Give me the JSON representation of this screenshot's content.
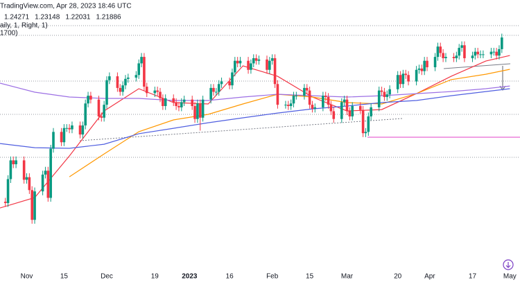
{
  "chart_data": {
    "type": "candlestick",
    "header": "TradingView.com, Apr 28, 2023 18:46 UTC",
    "info_line": "aily, 1, Right, 1)",
    "info_line_2": "1700)",
    "up_color": "#089981",
    "down_color": "#f23645",
    "xlim": [
      0,
      194.8
    ],
    "ylim": [
      1.077,
      1.286
    ],
    "xticks": [
      {
        "value": 10,
        "label": "Nov"
      },
      {
        "value": 24,
        "label": "15"
      },
      {
        "value": 40,
        "label": "Dec"
      },
      {
        "value": 58,
        "label": "19"
      },
      {
        "value": 71,
        "label": "2023"
      },
      {
        "value": 86,
        "label": "16"
      },
      {
        "value": 102,
        "label": "Feb"
      },
      {
        "value": 116,
        "label": "15"
      },
      {
        "value": 130,
        "label": "Mar"
      },
      {
        "value": 149,
        "label": "20"
      },
      {
        "value": 161,
        "label": "Apr"
      },
      {
        "value": 177,
        "label": "17"
      },
      {
        "value": 191,
        "label": "May"
      }
    ],
    "x": [
      2,
      3,
      4,
      5,
      6,
      9,
      10,
      11,
      12,
      13,
      16,
      17,
      18,
      19,
      20,
      23,
      24,
      25,
      26,
      27,
      30,
      31,
      32,
      33,
      34,
      37,
      38,
      39,
      40,
      41,
      44,
      45,
      46,
      47,
      48,
      51,
      52,
      53,
      54,
      55,
      58,
      59,
      60,
      61,
      62,
      65,
      66,
      67,
      68,
      69,
      72,
      73,
      74,
      75,
      76,
      79,
      80,
      81,
      82,
      83,
      86,
      87,
      88,
      89,
      90,
      93,
      94,
      95,
      96,
      97,
      100,
      101,
      102,
      103,
      104,
      107,
      108,
      109,
      110,
      111,
      114,
      115,
      116,
      117,
      118,
      121,
      122,
      123,
      124,
      125,
      128,
      129,
      130,
      131,
      132,
      135,
      136,
      137,
      138,
      139,
      142,
      143,
      144,
      145,
      146,
      149,
      150,
      151,
      152,
      153,
      156,
      157,
      158,
      159,
      160,
      163,
      164,
      165,
      166,
      167,
      170,
      171,
      172,
      173,
      174,
      177,
      178,
      179,
      180,
      181,
      184,
      185,
      186,
      187,
      188
    ],
    "open": [
      1.13,
      1.129,
      1.1475,
      1.162,
      1.159,
      1.162,
      1.147,
      1.149,
      1.139,
      1.116,
      1.138,
      1.151,
      1.154,
      1.133,
      1.171,
      1.184,
      1.176,
      1.187,
      1.187,
      1.186,
      1.189,
      1.182,
      1.189,
      1.206,
      1.212,
      1.209,
      1.196,
      1.195,
      1.205,
      1.224,
      1.227,
      1.218,
      1.215,
      1.22,
      1.225,
      1.226,
      1.228,
      1.237,
      1.242,
      1.219,
      1.214,
      1.216,
      1.215,
      1.21,
      1.204,
      1.21,
      1.207,
      1.204,
      1.203,
      1.207,
      1.209,
      1.204,
      1.194,
      1.206,
      1.195,
      1.209,
      1.218,
      1.215,
      1.215,
      1.221,
      1.223,
      1.22,
      1.23,
      1.239,
      1.237,
      1.239,
      1.232,
      1.237,
      1.241,
      1.239,
      1.24,
      1.232,
      1.239,
      1.241,
      1.221,
      1.205,
      1.205,
      1.204,
      1.206,
      1.212,
      1.212,
      1.218,
      1.216,
      1.205,
      1.202,
      1.203,
      1.212,
      1.211,
      1.205,
      1.2,
      1.194,
      1.207,
      1.209,
      1.2,
      1.196,
      1.204,
      1.201,
      1.183,
      1.184,
      1.196,
      1.203,
      1.216,
      1.215,
      1.211,
      1.213,
      1.217,
      1.228,
      1.221,
      1.229,
      1.228,
      1.223,
      1.232,
      1.233,
      1.231,
      1.239,
      1.234,
      1.242,
      1.25,
      1.245,
      1.241,
      1.242,
      1.241,
      1.243,
      1.249,
      1.251,
      1.241,
      1.243,
      1.246,
      1.244,
      1.244,
      1.244,
      1.246,
      1.246,
      1.243,
      1.248
    ],
    "high": [
      1.133,
      1.1505,
      1.165,
      1.165,
      1.165,
      1.165,
      1.152,
      1.152,
      1.142,
      1.141,
      1.154,
      1.157,
      1.157,
      1.174,
      1.187,
      1.187,
      1.19,
      1.19,
      1.19,
      1.192,
      1.192,
      1.192,
      1.209,
      1.215,
      1.215,
      1.212,
      1.199,
      1.208,
      1.227,
      1.23,
      1.23,
      1.221,
      1.223,
      1.228,
      1.229,
      1.231,
      1.24,
      1.245,
      1.245,
      1.222,
      1.219,
      1.219,
      1.218,
      1.213,
      1.213,
      1.213,
      1.21,
      1.207,
      1.21,
      1.212,
      1.212,
      1.207,
      1.209,
      1.209,
      1.212,
      1.221,
      1.221,
      1.218,
      1.224,
      1.226,
      1.226,
      1.233,
      1.242,
      1.242,
      1.242,
      1.242,
      1.24,
      1.244,
      1.244,
      1.243,
      1.243,
      1.242,
      1.244,
      1.244,
      1.224,
      1.208,
      1.208,
      1.209,
      1.215,
      1.215,
      1.221,
      1.221,
      1.219,
      1.208,
      1.206,
      1.215,
      1.215,
      1.214,
      1.208,
      1.203,
      1.21,
      1.212,
      1.212,
      1.203,
      1.207,
      1.207,
      1.204,
      1.187,
      1.199,
      1.206,
      1.219,
      1.219,
      1.218,
      1.216,
      1.22,
      1.231,
      1.231,
      1.232,
      1.232,
      1.231,
      1.235,
      1.236,
      1.236,
      1.242,
      1.242,
      1.245,
      1.253,
      1.253,
      1.248,
      1.245,
      1.245,
      1.246,
      1.252,
      1.254,
      1.254,
      1.246,
      1.249,
      1.249,
      1.247,
      1.247,
      1.249,
      1.249,
      1.249,
      1.251,
      1.26
    ],
    "low": [
      1.126,
      1.126,
      1.1445,
      1.156,
      1.156,
      1.144,
      1.144,
      1.136,
      1.113,
      1.113,
      1.135,
      1.148,
      1.13,
      1.13,
      1.168,
      1.173,
      1.173,
      1.184,
      1.183,
      1.183,
      1.179,
      1.179,
      1.186,
      1.203,
      1.206,
      1.193,
      1.192,
      1.192,
      1.202,
      1.221,
      1.215,
      1.212,
      1.212,
      1.217,
      1.222,
      1.223,
      1.225,
      1.234,
      1.216,
      1.211,
      1.211,
      1.212,
      1.207,
      1.201,
      1.201,
      1.204,
      1.201,
      1.2,
      1.2,
      1.204,
      1.201,
      1.191,
      1.191,
      1.185,
      1.192,
      1.206,
      1.212,
      1.212,
      1.212,
      1.218,
      1.217,
      1.217,
      1.227,
      1.234,
      1.234,
      1.229,
      1.229,
      1.234,
      1.236,
      1.236,
      1.229,
      1.229,
      1.236,
      1.218,
      1.202,
      1.202,
      1.201,
      1.201,
      1.203,
      1.209,
      1.209,
      1.213,
      1.202,
      1.199,
      1.199,
      1.2,
      1.208,
      1.202,
      1.197,
      1.191,
      1.191,
      1.204,
      1.197,
      1.193,
      1.193,
      1.198,
      1.18,
      1.18,
      1.181,
      1.193,
      1.2,
      1.212,
      1.208,
      1.208,
      1.21,
      1.214,
      1.218,
      1.218,
      1.225,
      1.22,
      1.22,
      1.229,
      1.228,
      1.228,
      1.231,
      1.231,
      1.239,
      1.242,
      1.238,
      1.238,
      1.238,
      1.238,
      1.24,
      1.246,
      1.238,
      1.238,
      1.24,
      1.241,
      1.241,
      1.241,
      1.241,
      1.243,
      1.24,
      1.24,
      1.245
    ],
    "close": [
      1.129,
      1.1475,
      1.162,
      1.159,
      1.162,
      1.147,
      1.149,
      1.139,
      1.116,
      1.138,
      1.151,
      1.154,
      1.133,
      1.171,
      1.184,
      1.176,
      1.187,
      1.187,
      1.186,
      1.189,
      1.182,
      1.189,
      1.206,
      1.212,
      1.209,
      1.196,
      1.195,
      1.205,
      1.224,
      1.227,
      1.218,
      1.215,
      1.22,
      1.225,
      1.226,
      1.228,
      1.237,
      1.242,
      1.219,
      1.214,
      1.216,
      1.215,
      1.21,
      1.204,
      1.21,
      1.207,
      1.204,
      1.203,
      1.207,
      1.209,
      1.204,
      1.194,
      1.206,
      1.195,
      1.209,
      1.218,
      1.215,
      1.215,
      1.221,
      1.223,
      1.22,
      1.23,
      1.239,
      1.237,
      1.239,
      1.232,
      1.237,
      1.241,
      1.239,
      1.24,
      1.232,
      1.239,
      1.241,
      1.221,
      1.205,
      1.205,
      1.204,
      1.206,
      1.212,
      1.212,
      1.218,
      1.216,
      1.205,
      1.202,
      1.203,
      1.212,
      1.211,
      1.205,
      1.2,
      1.194,
      1.207,
      1.209,
      1.2,
      1.196,
      1.204,
      1.201,
      1.183,
      1.184,
      1.196,
      1.203,
      1.216,
      1.215,
      1.211,
      1.213,
      1.217,
      1.228,
      1.221,
      1.229,
      1.228,
      1.223,
      1.232,
      1.233,
      1.231,
      1.239,
      1.234,
      1.242,
      1.25,
      1.245,
      1.241,
      1.242,
      1.241,
      1.243,
      1.249,
      1.251,
      1.241,
      1.243,
      1.246,
      1.244,
      1.244,
      1.244,
      1.246,
      1.246,
      1.243,
      1.248,
      1.257
    ],
    "moving_averages": {
      "x": [
        0,
        13,
        26,
        39,
        52,
        65,
        78,
        91,
        104,
        117,
        130,
        143,
        156,
        169,
        182,
        191
      ],
      "series": [
        {
          "color": "#f23645",
          "legend_value": 1.24271,
          "values": [
            1.1252,
            1.1332,
            1.1654,
            1.2002,
            1.2174,
            1.2067,
            1.2056,
            1.2351,
            1.227,
            1.211,
            1.2002,
            1.2013,
            1.2136,
            1.227,
            1.2388,
            1.2431
          ]
        },
        {
          "color": "#ff9800",
          "legend_value": 1.23148,
          "values": [
            null,
            null,
            1.1493,
            1.167,
            1.1842,
            1.1933,
            1.1976,
            1.2056,
            1.2131,
            1.211,
            1.2067,
            1.2056,
            1.2136,
            1.2244,
            1.2286,
            1.2324
          ]
        },
        {
          "color": "#9c6fe4",
          "legend_value": 1.22031,
          "values": [
            1.2217,
            1.2147,
            1.211,
            1.2099,
            1.2099,
            1.2083,
            1.2083,
            1.211,
            1.2131,
            1.212,
            1.211,
            1.212,
            1.2136,
            1.2152,
            1.2174,
            1.2195
          ]
        },
        {
          "color": "#4f5ee0",
          "legend_value": 1.21886,
          "values": [
            1.175,
            1.1718,
            1.1713,
            1.1745,
            1.1826,
            1.1868,
            1.1911,
            1.1949,
            1.1986,
            1.2018,
            1.204,
            1.2067,
            1.2083,
            1.212,
            1.2152,
            1.2174
          ]
        }
      ]
    }
  }
}
